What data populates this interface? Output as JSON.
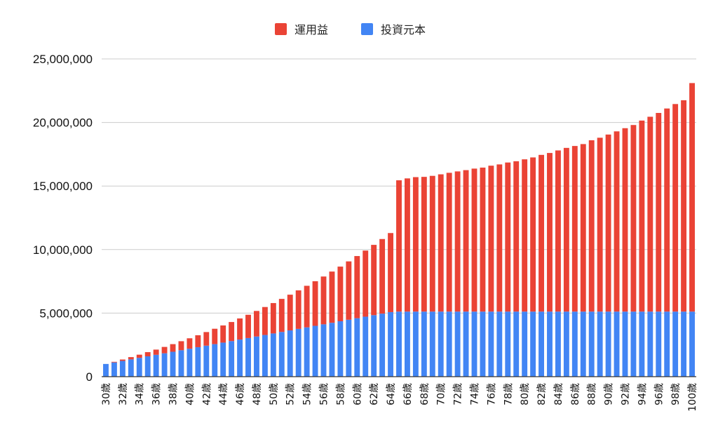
{
  "chart_data": {
    "type": "bar",
    "stacked": true,
    "legend_position": "top",
    "grid": true,
    "ylim": [
      0,
      25000000
    ],
    "yticks": [
      {
        "value": 0,
        "label": "0"
      },
      {
        "value": 5000000,
        "label": "5,000,000"
      },
      {
        "value": 10000000,
        "label": "10,000,000"
      },
      {
        "value": 15000000,
        "label": "15,000,000"
      },
      {
        "value": 20000000,
        "label": "20,000,000"
      },
      {
        "value": 25000000,
        "label": "25,000,000"
      }
    ],
    "categories": [
      "30歳",
      "31歳",
      "32歳",
      "33歳",
      "34歳",
      "35歳",
      "36歳",
      "37歳",
      "38歳",
      "39歳",
      "40歳",
      "41歳",
      "42歳",
      "43歳",
      "44歳",
      "45歳",
      "46歳",
      "47歳",
      "48歳",
      "49歳",
      "50歳",
      "51歳",
      "52歳",
      "53歳",
      "54歳",
      "55歳",
      "56歳",
      "57歳",
      "58歳",
      "59歳",
      "60歳",
      "61歳",
      "62歳",
      "63歳",
      "64歳",
      "65歳",
      "66歳",
      "67歳",
      "68歳",
      "69歳",
      "70歳",
      "71歳",
      "72歳",
      "73歳",
      "74歳",
      "75歳",
      "76歳",
      "77歳",
      "78歳",
      "79歳",
      "80歳",
      "81歳",
      "82歳",
      "83歳",
      "84歳",
      "85歳",
      "86歳",
      "87歳",
      "88歳",
      "89歳",
      "90歳",
      "91歳",
      "92歳",
      "93歳",
      "94歳",
      "95歳",
      "96歳",
      "97歳",
      "98歳",
      "99歳",
      "100歳"
    ],
    "x_tick_labels": [
      "30歳",
      "32歳",
      "34歳",
      "36歳",
      "38歳",
      "40歳",
      "42歳",
      "44歳",
      "46歳",
      "48歳",
      "50歳",
      "52歳",
      "54歳",
      "56歳",
      "58歳",
      "60歳",
      "62歳",
      "64歳",
      "66歳",
      "68歳",
      "70歳",
      "72歳",
      "74歳",
      "76歳",
      "78歳",
      "80歳",
      "82歳",
      "84歳",
      "86歳",
      "88歳",
      "90歳",
      "92歳",
      "94歳",
      "96歳",
      "98歳",
      "100歳"
    ],
    "series": [
      {
        "name": "投資元本",
        "color": "#4285f4",
        "values": [
          1000000,
          1120000,
          1240000,
          1360000,
          1480000,
          1600000,
          1720000,
          1840000,
          1960000,
          2080000,
          2200000,
          2320000,
          2440000,
          2560000,
          2680000,
          2800000,
          2920000,
          3040000,
          3160000,
          3280000,
          3400000,
          3520000,
          3640000,
          3760000,
          3880000,
          4000000,
          4120000,
          4240000,
          4360000,
          4480000,
          4600000,
          4720000,
          4840000,
          4960000,
          5080000,
          5120000,
          5120000,
          5120000,
          5120000,
          5120000,
          5120000,
          5120000,
          5120000,
          5120000,
          5120000,
          5120000,
          5120000,
          5120000,
          5120000,
          5120000,
          5120000,
          5120000,
          5120000,
          5120000,
          5120000,
          5120000,
          5120000,
          5120000,
          5120000,
          5120000,
          5120000,
          5120000,
          5120000,
          5120000,
          5120000,
          5120000,
          5120000,
          5120000,
          5120000,
          5120000,
          5120000
        ]
      },
      {
        "name": "運用益",
        "color": "#ea4335",
        "values": [
          0,
          50000,
          110000,
          180000,
          250000,
          330000,
          410000,
          500000,
          600000,
          710000,
          820000,
          940000,
          1070000,
          1210000,
          1350000,
          1500000,
          1660000,
          1830000,
          2010000,
          2200000,
          2390000,
          2600000,
          2810000,
          3030000,
          3270000,
          3510000,
          3760000,
          4030000,
          4300000,
          4590000,
          4890000,
          5200000,
          5530000,
          5870000,
          6220000,
          10330000,
          10480000,
          10580000,
          10600000,
          10680000,
          10800000,
          10920000,
          11030000,
          11130000,
          11250000,
          11330000,
          11480000,
          11580000,
          11730000,
          11830000,
          11980000,
          12130000,
          12330000,
          12480000,
          12680000,
          12880000,
          13030000,
          13180000,
          13480000,
          13680000,
          13930000,
          14180000,
          14430000,
          14680000,
          15030000,
          15330000,
          15630000,
          15980000,
          16330000,
          16630000,
          17980000
        ]
      }
    ]
  }
}
